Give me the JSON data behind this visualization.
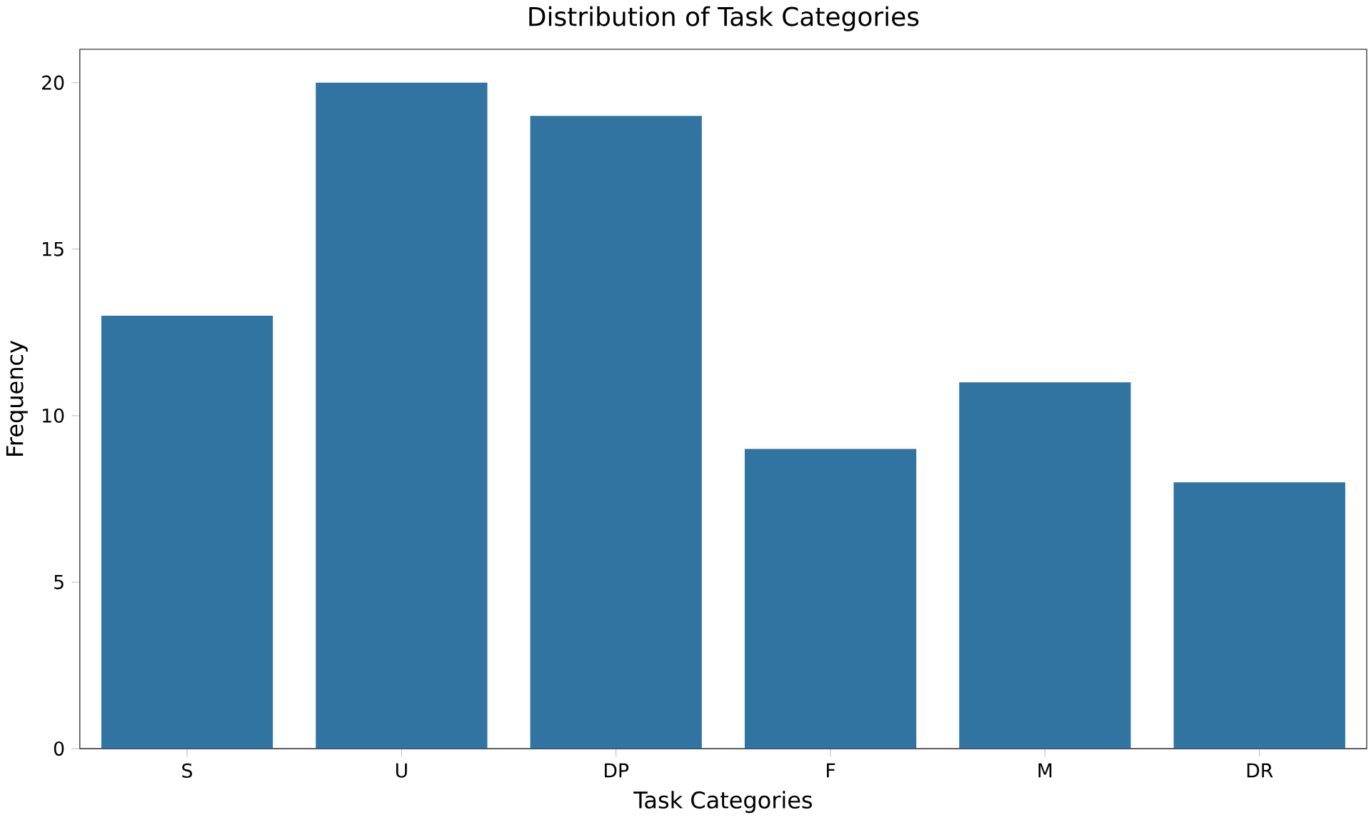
{
  "chart_data": {
    "type": "bar",
    "title": "Distribution of Task Categories",
    "xlabel": "Task Categories",
    "ylabel": "Frequency",
    "categories": [
      "S",
      "U",
      "DP",
      "F",
      "M",
      "DR"
    ],
    "values": [
      13,
      20,
      19,
      9,
      11,
      8
    ],
    "color": "#3274a1",
    "ylim": [
      0,
      21
    ],
    "yticks": [
      0,
      5,
      10,
      15,
      20
    ]
  }
}
